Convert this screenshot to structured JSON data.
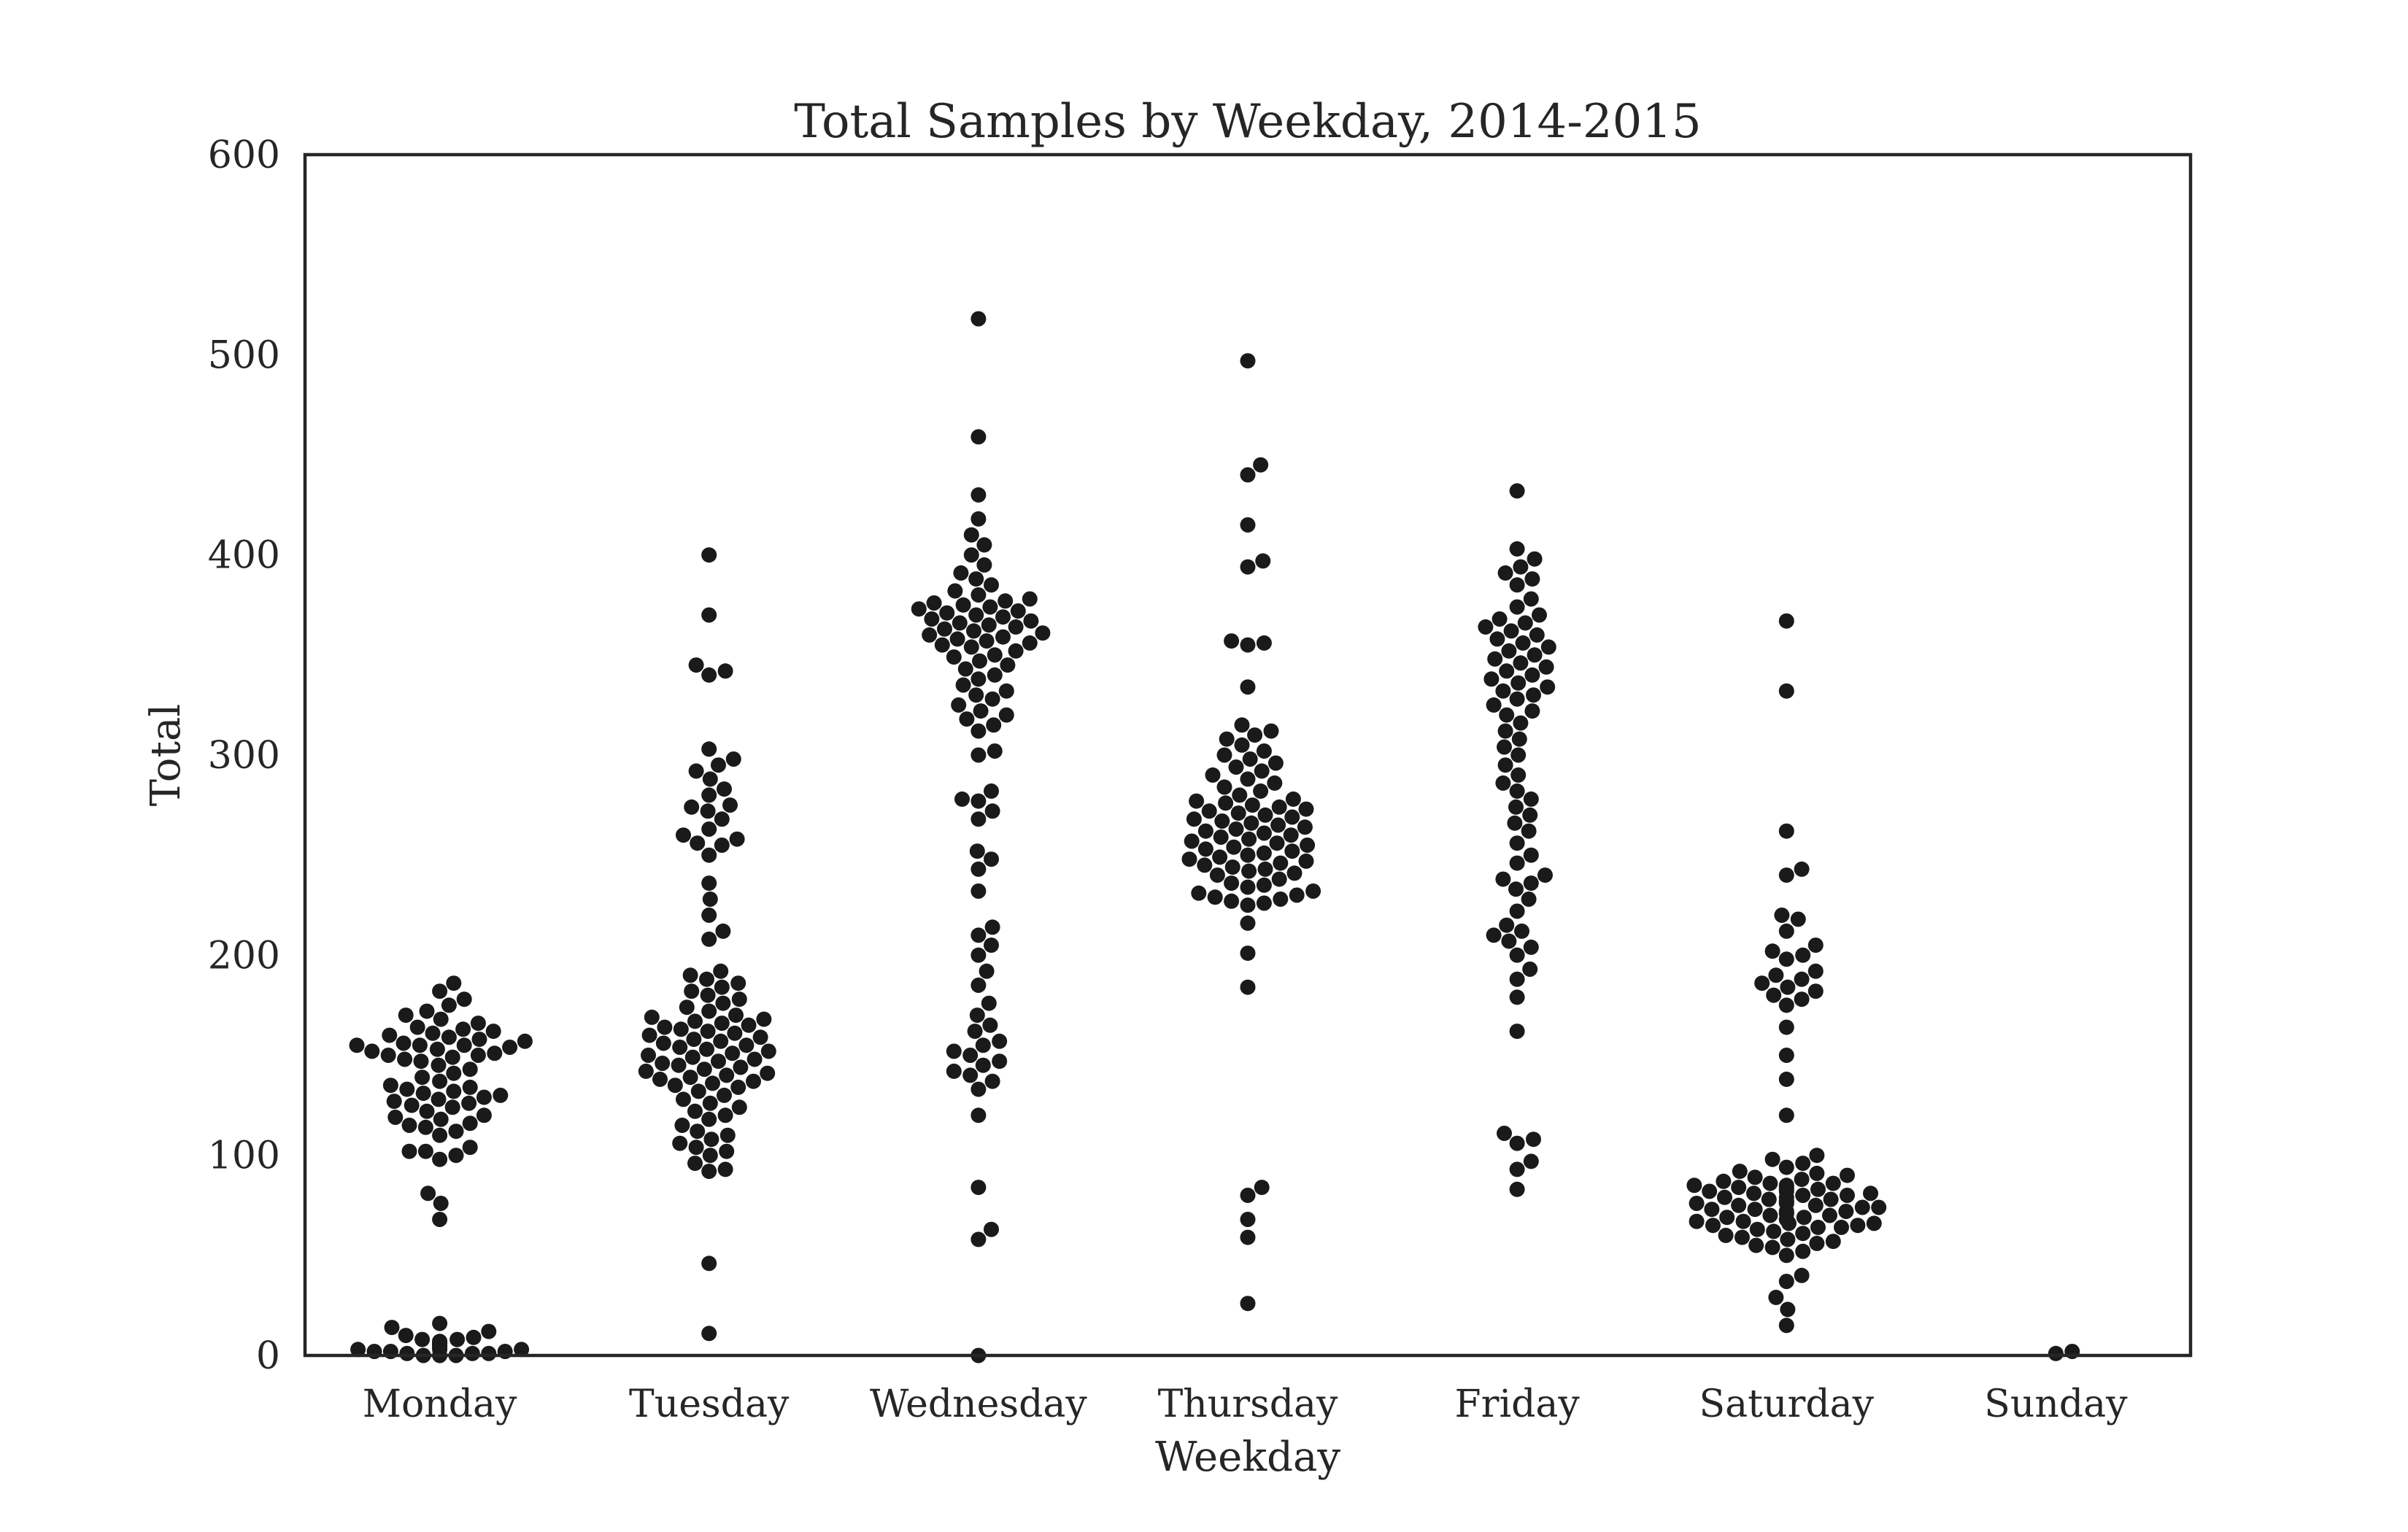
{
  "chart_data": {
    "type": "scatter",
    "subtype": "swarm",
    "title": "Total Samples by Weekday, 2014-2015",
    "xlabel": "Weekday",
    "ylabel": "Total",
    "categories": [
      "Monday",
      "Tuesday",
      "Wednesday",
      "Thursday",
      "Friday",
      "Saturday",
      "Sunday"
    ],
    "ylim": [
      0,
      600
    ],
    "yticks": [
      0,
      100,
      200,
      300,
      400,
      500,
      600
    ],
    "grid": false,
    "legend": "none",
    "marker_color": "#1a1a1a",
    "series": [
      {
        "category": "Monday",
        "values": [
          0,
          0,
          0,
          1,
          1,
          1,
          2,
          2,
          2,
          3,
          3,
          3,
          4,
          4,
          5,
          5,
          6,
          6,
          7,
          7,
          8,
          8,
          9,
          10,
          12,
          14,
          16,
          68,
          76,
          81,
          98,
          100,
          102,
          102,
          104,
          110,
          112,
          114,
          115,
          116,
          118,
          119,
          120,
          122,
          124,
          125,
          126,
          127,
          128,
          129,
          130,
          131,
          132,
          133,
          134,
          135,
          137,
          139,
          141,
          143,
          145,
          147,
          148,
          149,
          150,
          150,
          151,
          152,
          153,
          154,
          155,
          155,
          155,
          156,
          157,
          158,
          159,
          160,
          161,
          162,
          163,
          164,
          166,
          168,
          170,
          172,
          175,
          178,
          182,
          186
        ]
      },
      {
        "category": "Tuesday",
        "values": [
          11,
          46,
          92,
          93,
          96,
          100,
          102,
          104,
          106,
          108,
          110,
          112,
          115,
          118,
          120,
          122,
          124,
          126,
          128,
          130,
          132,
          134,
          135,
          136,
          137,
          138,
          139,
          140,
          141,
          142,
          143,
          144,
          145,
          146,
          147,
          148,
          149,
          150,
          151,
          152,
          153,
          154,
          155,
          156,
          157,
          158,
          159,
          160,
          161,
          162,
          163,
          164,
          165,
          166,
          167,
          168,
          169,
          170,
          172,
          174,
          176,
          178,
          180,
          182,
          184,
          186,
          188,
          190,
          192,
          208,
          212,
          220,
          228,
          236,
          250,
          255,
          256,
          258,
          260,
          263,
          268,
          272,
          274,
          275,
          280,
          283,
          288,
          292,
          295,
          298,
          303,
          340,
          342,
          345,
          370,
          400
        ]
      },
      {
        "category": "Wednesday",
        "values": [
          0,
          58,
          63,
          84,
          120,
          133,
          137,
          140,
          142,
          145,
          147,
          150,
          152,
          155,
          157,
          162,
          165,
          170,
          176,
          185,
          192,
          200,
          205,
          210,
          214,
          232,
          243,
          248,
          252,
          268,
          272,
          277,
          278,
          282,
          300,
          302,
          312,
          315,
          318,
          320,
          322,
          325,
          328,
          330,
          332,
          335,
          338,
          340,
          343,
          345,
          347,
          349,
          350,
          352,
          354,
          355,
          356,
          357,
          358,
          359,
          360,
          361,
          362,
          363,
          364,
          365,
          366,
          367,
          368,
          369,
          370,
          371,
          372,
          373,
          374,
          375,
          376,
          377,
          378,
          380,
          382,
          385,
          388,
          391,
          395,
          400,
          405,
          410,
          418,
          430,
          459,
          518
        ]
      },
      {
        "category": "Thursday",
        "values": [
          26,
          59,
          68,
          80,
          84,
          184,
          201,
          216,
          225,
          226,
          227,
          228,
          229,
          230,
          231,
          232,
          234,
          235,
          236,
          238,
          240,
          241,
          242,
          243,
          244,
          245,
          246,
          247,
          248,
          249,
          250,
          251,
          252,
          253,
          254,
          255,
          256,
          257,
          258,
          259,
          260,
          261,
          262,
          263,
          264,
          265,
          266,
          267,
          268,
          269,
          270,
          271,
          272,
          273,
          274,
          275,
          276,
          277,
          278,
          280,
          282,
          284,
          286,
          288,
          290,
          292,
          294,
          296,
          298,
          300,
          302,
          305,
          308,
          310,
          312,
          315,
          334,
          355,
          356,
          357,
          394,
          397,
          415,
          440,
          445,
          497
        ]
      },
      {
        "category": "Friday",
        "values": [
          83,
          93,
          97,
          106,
          108,
          111,
          162,
          179,
          188,
          193,
          200,
          204,
          207,
          210,
          212,
          215,
          222,
          228,
          233,
          236,
          238,
          240,
          246,
          250,
          256,
          262,
          266,
          270,
          274,
          278,
          282,
          286,
          290,
          295,
          300,
          304,
          308,
          312,
          316,
          320,
          322,
          325,
          328,
          330,
          332,
          334,
          336,
          338,
          340,
          342,
          344,
          346,
          348,
          350,
          352,
          354,
          356,
          358,
          360,
          362,
          364,
          366,
          368,
          370,
          374,
          378,
          385,
          388,
          391,
          394,
          398,
          403,
          432
        ]
      },
      {
        "category": "Saturday",
        "values": [
          15,
          23,
          29,
          37,
          40,
          50,
          52,
          54,
          55,
          56,
          57,
          58,
          59,
          60,
          61,
          62,
          63,
          64,
          64,
          65,
          65,
          66,
          66,
          67,
          67,
          68,
          68,
          69,
          69,
          70,
          70,
          71,
          71,
          72,
          72,
          73,
          73,
          74,
          74,
          75,
          75,
          76,
          76,
          77,
          77,
          78,
          78,
          79,
          79,
          80,
          80,
          81,
          81,
          82,
          82,
          83,
          83,
          84,
          84,
          85,
          85,
          86,
          86,
          87,
          88,
          89,
          90,
          91,
          92,
          94,
          96,
          98,
          100,
          120,
          138,
          150,
          164,
          175,
          178,
          180,
          182,
          184,
          186,
          188,
          190,
          192,
          198,
          200,
          202,
          205,
          212,
          218,
          220,
          240,
          243,
          262,
          332,
          367
        ]
      },
      {
        "category": "Sunday",
        "values": [
          1,
          2
        ]
      }
    ]
  }
}
